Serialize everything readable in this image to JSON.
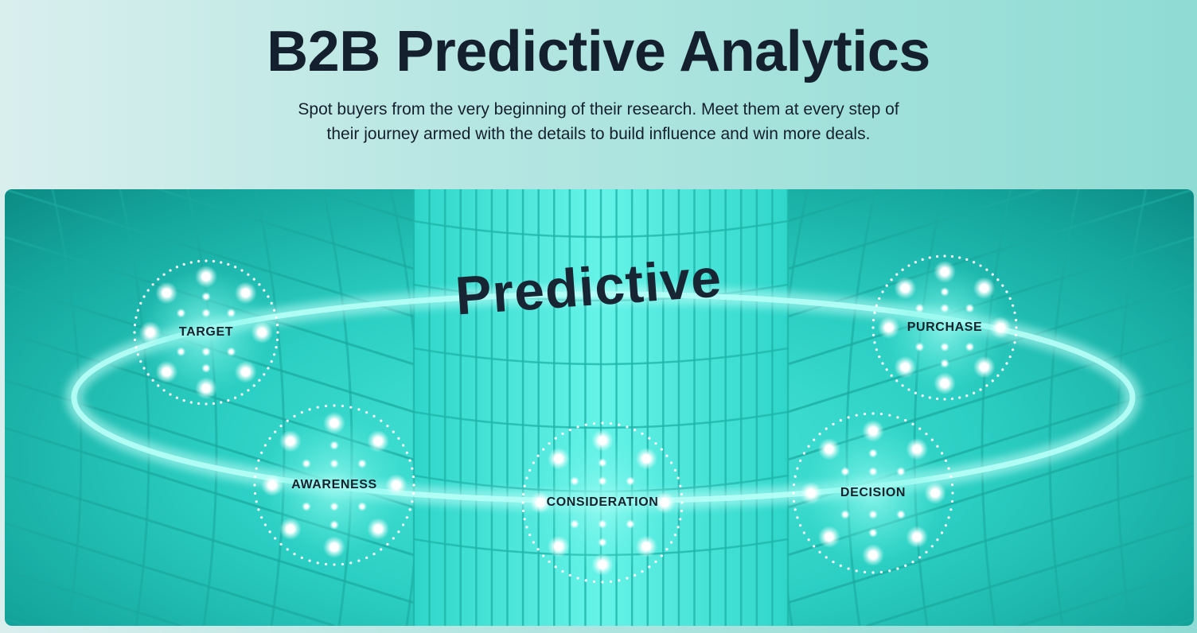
{
  "header": {
    "title": "B2B Predictive Analytics",
    "subtitle_lines": [
      "Spot buyers from the very beginning of their research. Meet them at every step of",
      "their journey armed with the details to build influence and win more deals."
    ]
  },
  "illustration": {
    "center_label": "Predictive",
    "stages": [
      {
        "label": "TARGET"
      },
      {
        "label": "AWARENESS"
      },
      {
        "label": "CONSIDERATION"
      },
      {
        "label": "DECISION"
      },
      {
        "label": "PURCHASE"
      }
    ],
    "colors": {
      "accent": "#2ccfc3",
      "glow": "#b9fff7",
      "text": "#14202e"
    }
  }
}
